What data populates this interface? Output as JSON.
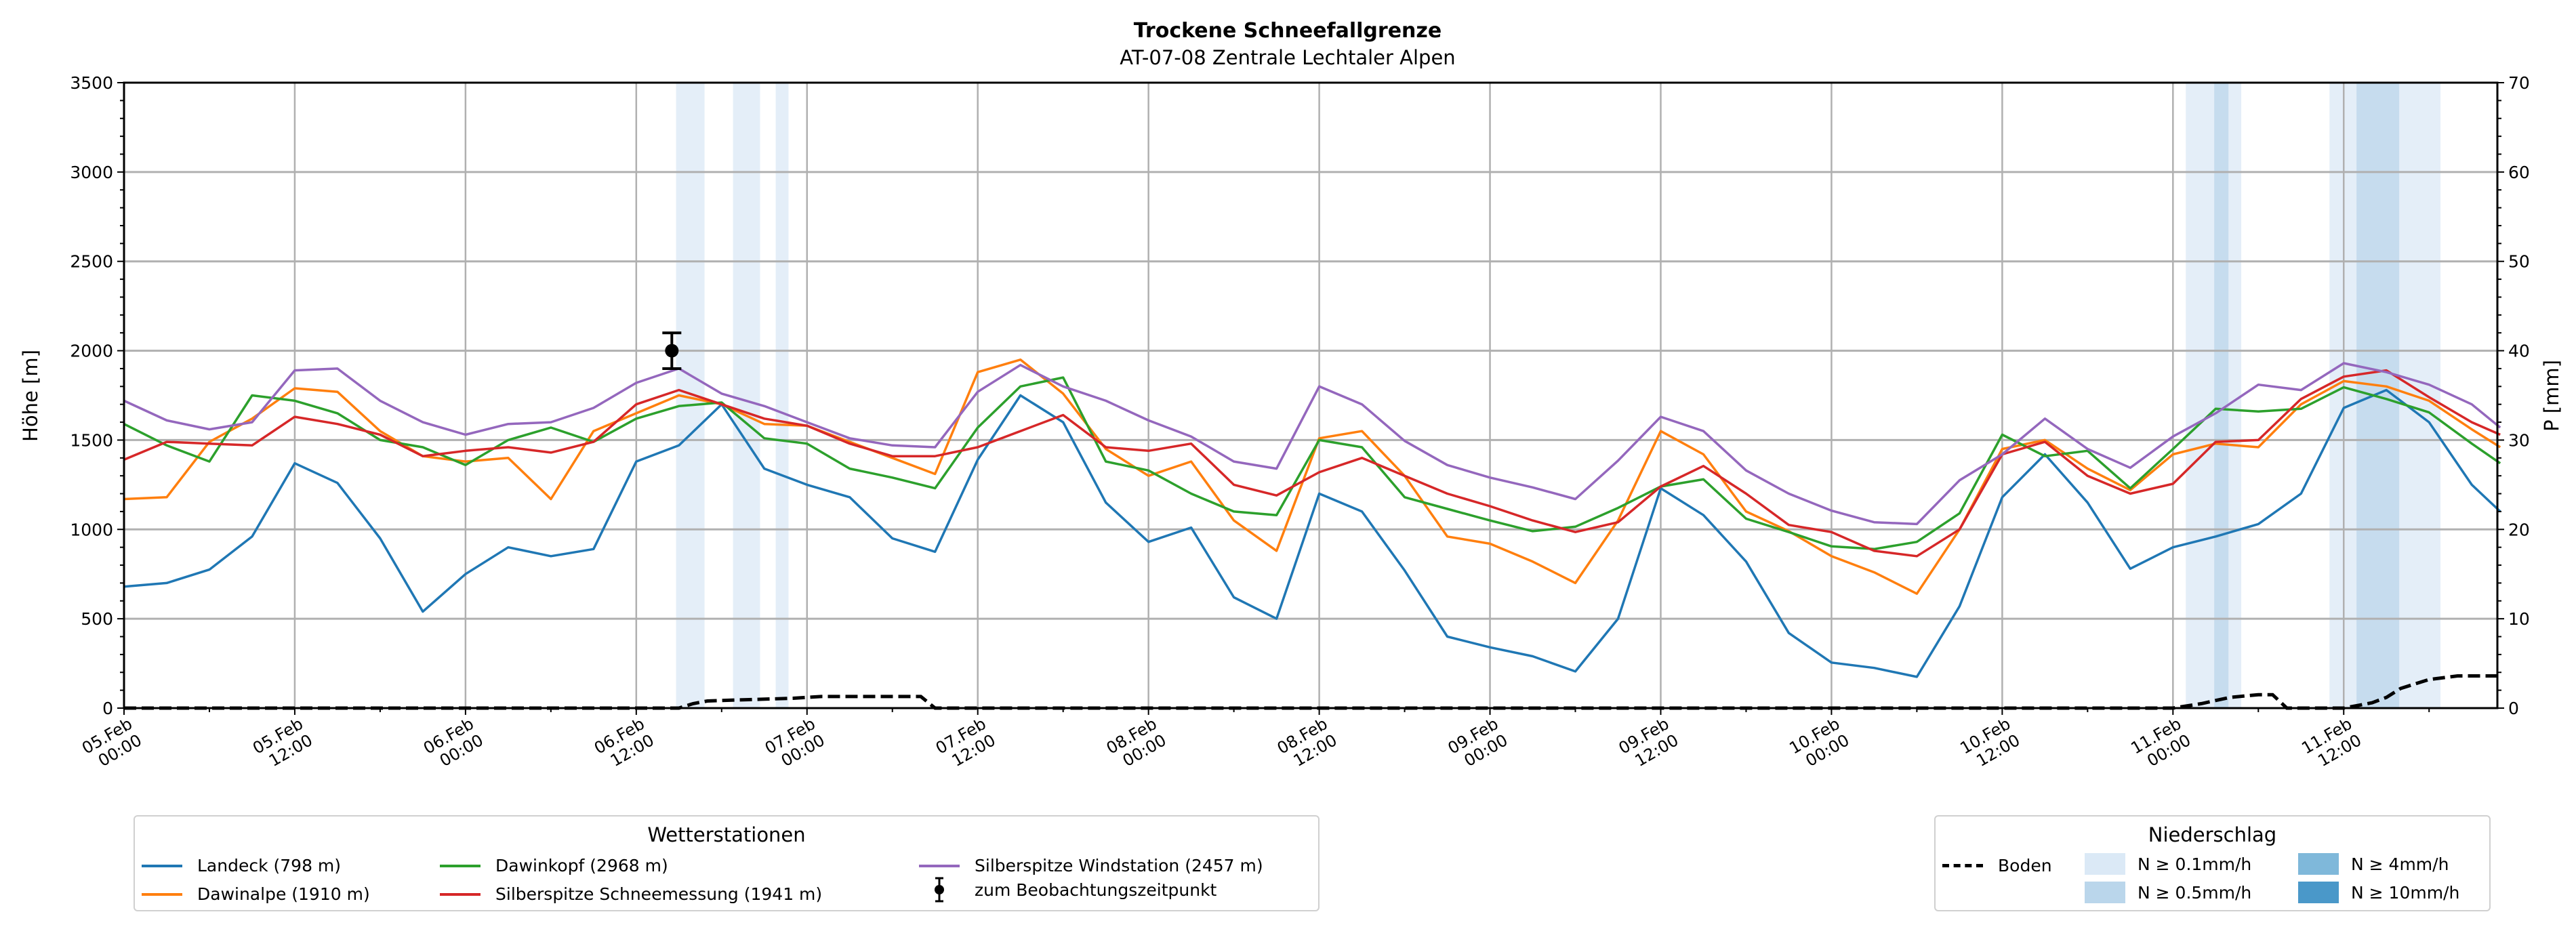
{
  "chart_data": {
    "type": "line",
    "title": "Trockene Schneefallgrenze",
    "subtitle": "AT-07-08 Zentrale Lechtaler Alpen",
    "ylabel": "Höhe [m]",
    "ylabel_right": "P [mm]",
    "ylim": [
      0,
      3500
    ],
    "ylim_right": [
      0,
      70
    ],
    "xlim_hours": [
      0,
      166.8
    ],
    "grid": true,
    "yticks": [
      "0",
      "500",
      "1000",
      "1500",
      "2000",
      "2500",
      "3000",
      "3500"
    ],
    "yticks_right": [
      "0",
      "10",
      "20",
      "30",
      "40",
      "50",
      "60",
      "70"
    ],
    "xticks": [
      {
        "hour": 0,
        "date": "05.Feb",
        "time": "00:00"
      },
      {
        "hour": 12,
        "date": "05.Feb",
        "time": "12:00"
      },
      {
        "hour": 24,
        "date": "06.Feb",
        "time": "00:00"
      },
      {
        "hour": 36,
        "date": "06.Feb",
        "time": "12:00"
      },
      {
        "hour": 48,
        "date": "07.Feb",
        "time": "00:00"
      },
      {
        "hour": 60,
        "date": "07.Feb",
        "time": "12:00"
      },
      {
        "hour": 72,
        "date": "08.Feb",
        "time": "00:00"
      },
      {
        "hour": 84,
        "date": "08.Feb",
        "time": "12:00"
      },
      {
        "hour": 96,
        "date": "09.Feb",
        "time": "00:00"
      },
      {
        "hour": 108,
        "date": "09.Feb",
        "time": "12:00"
      },
      {
        "hour": 120,
        "date": "10.Feb",
        "time": "00:00"
      },
      {
        "hour": 132,
        "date": "10.Feb",
        "time": "12:00"
      },
      {
        "hour": 144,
        "date": "11.Feb",
        "time": "00:00"
      },
      {
        "hour": 156,
        "date": "11.Feb",
        "time": "12:00"
      }
    ],
    "x_hours": [
      0,
      3,
      6,
      9,
      12,
      15,
      18,
      21,
      24,
      27,
      30,
      33,
      36,
      39,
      42,
      45,
      48,
      51,
      54,
      57,
      60,
      63,
      66,
      69,
      72,
      75,
      78,
      81,
      84,
      87,
      90,
      93,
      96,
      99,
      102,
      105,
      108,
      111,
      114,
      117,
      120,
      123,
      126,
      129,
      132,
      135,
      138,
      141,
      144,
      147,
      150,
      153,
      156,
      159,
      162,
      165,
      167
    ],
    "series": [
      {
        "name": "Landeck (798 m)",
        "color": "#1f77b4",
        "values": [
          680,
          700,
          775,
          960,
          1370,
          1260,
          950,
          540,
          750,
          900,
          850,
          890,
          1380,
          1470,
          1700,
          1340,
          1250,
          1180,
          950,
          875,
          1390,
          1750,
          1600,
          1150,
          930,
          1010,
          620,
          500,
          1200,
          1100,
          770,
          400,
          340,
          290,
          205,
          500,
          1230,
          1080,
          820,
          420,
          255,
          225,
          175,
          570,
          1180,
          1420,
          1150,
          780,
          900,
          960,
          1030,
          1200,
          1680,
          1780,
          1600,
          1250,
          1100
        ]
      },
      {
        "name": "Dawinalpe (1910 m)",
        "color": "#ff7f0e",
        "values": [
          1170,
          1180,
          1490,
          1620,
          1790,
          1770,
          1550,
          1410,
          1380,
          1400,
          1170,
          1550,
          1650,
          1750,
          1700,
          1590,
          1580,
          1490,
          1400,
          1310,
          1880,
          1950,
          1760,
          1450,
          1300,
          1380,
          1050,
          880,
          1510,
          1550,
          1300,
          960,
          920,
          820,
          700,
          1050,
          1550,
          1420,
          1100,
          990,
          850,
          760,
          640,
          1000,
          1450,
          1500,
          1340,
          1220,
          1420,
          1480,
          1460,
          1700,
          1830,
          1800,
          1720,
          1560,
          1460
        ]
      },
      {
        "name": "Dawinkopf (2968 m)",
        "color": "#2ca02c",
        "values": [
          1590,
          1470,
          1380,
          1750,
          1720,
          1650,
          1500,
          1460,
          1360,
          1500,
          1570,
          1490,
          1620,
          1690,
          1710,
          1510,
          1480,
          1340,
          1290,
          1230,
          1570,
          1800,
          1850,
          1380,
          1330,
          1200,
          1100,
          1080,
          1500,
          1460,
          1180,
          1115,
          1050,
          990,
          1015,
          1120,
          1240,
          1280,
          1060,
          985,
          905,
          890,
          930,
          1090,
          1530,
          1410,
          1440,
          1230,
          1450,
          1675,
          1660,
          1675,
          1795,
          1730,
          1655,
          1480,
          1370
        ]
      },
      {
        "name": "Silberspitze Schneemessung (1941 m)",
        "color": "#d62728",
        "values": [
          1390,
          1490,
          1480,
          1470,
          1630,
          1590,
          1530,
          1410,
          1440,
          1460,
          1430,
          1490,
          1700,
          1780,
          1700,
          1620,
          1580,
          1480,
          1410,
          1410,
          1460,
          1550,
          1640,
          1460,
          1440,
          1480,
          1250,
          1190,
          1320,
          1400,
          1300,
          1200,
          1130,
          1050,
          985,
          1040,
          1240,
          1355,
          1200,
          1025,
          985,
          880,
          850,
          1000,
          1420,
          1490,
          1300,
          1200,
          1255,
          1490,
          1500,
          1730,
          1855,
          1890,
          1740,
          1600,
          1530
        ]
      },
      {
        "name": "Silberspitze Windstation (2457 m)",
        "color": "#9467bd",
        "values": [
          1720,
          1610,
          1560,
          1600,
          1890,
          1900,
          1720,
          1600,
          1530,
          1590,
          1600,
          1680,
          1820,
          1900,
          1760,
          1690,
          1600,
          1510,
          1470,
          1460,
          1770,
          1920,
          1800,
          1720,
          1610,
          1520,
          1380,
          1340,
          1800,
          1700,
          1495,
          1360,
          1290,
          1235,
          1170,
          1385,
          1630,
          1550,
          1330,
          1200,
          1105,
          1040,
          1030,
          1275,
          1420,
          1620,
          1450,
          1345,
          1520,
          1650,
          1810,
          1780,
          1930,
          1880,
          1810,
          1700,
          1570
        ]
      }
    ],
    "observation": {
      "name": "zum Beobachtungszeitpunkt",
      "hour": 38.5,
      "value": 2000,
      "error_low": 1900,
      "error_high": 2100
    },
    "ground_precip": {
      "name": "Boden",
      "unit": "mm",
      "points": [
        [
          0,
          0
        ],
        [
          39,
          0
        ],
        [
          40,
          0.5
        ],
        [
          41,
          0.8
        ],
        [
          43,
          0.9
        ],
        [
          47,
          1.1
        ],
        [
          49,
          1.3
        ],
        [
          56,
          1.3
        ],
        [
          57,
          0
        ],
        [
          144,
          0
        ],
        [
          146,
          0.5
        ],
        [
          148,
          1.2
        ],
        [
          150,
          1.5
        ],
        [
          151,
          1.5
        ],
        [
          152,
          0
        ],
        [
          156,
          0
        ],
        [
          158,
          0.6
        ],
        [
          159,
          1.2
        ],
        [
          160,
          2.2
        ],
        [
          162,
          3.2
        ],
        [
          164,
          3.6
        ],
        [
          167,
          3.6
        ]
      ]
    },
    "precip_bands": [
      {
        "start": 38.8,
        "end": 40.8,
        "level": "N ≥ 0.1mm/h"
      },
      {
        "start": 42.8,
        "end": 44.7,
        "level": "N ≥ 0.1mm/h"
      },
      {
        "start": 45.8,
        "end": 46.7,
        "level": "N ≥ 0.1mm/h"
      },
      {
        "start": 144.9,
        "end": 148.8,
        "level": "N ≥ 0.1mm/h"
      },
      {
        "start": 146.9,
        "end": 147.9,
        "level": "N ≥ 0.5mm/h"
      },
      {
        "start": 155.0,
        "end": 162.8,
        "level": "N ≥ 0.1mm/h"
      },
      {
        "start": 156.9,
        "end": 159.9,
        "level": "N ≥ 0.5mm/h"
      }
    ],
    "legend_stations": {
      "title": "Wetterstationen",
      "placement": "bottom-left"
    },
    "legend_precip": {
      "title": "Niederschlag",
      "placement": "bottom-right",
      "ground_label": "Boden",
      "levels": [
        {
          "label": "N ≥ 0.1mm/h",
          "color": "#dbe9f6"
        },
        {
          "label": "N ≥ 0.5mm/h",
          "color": "#bad6eb"
        },
        {
          "label": "N ≥ 4mm/h",
          "color": "#7fb8da"
        },
        {
          "label": "N ≥ 10mm/h",
          "color": "#4a98c9"
        }
      ]
    }
  }
}
